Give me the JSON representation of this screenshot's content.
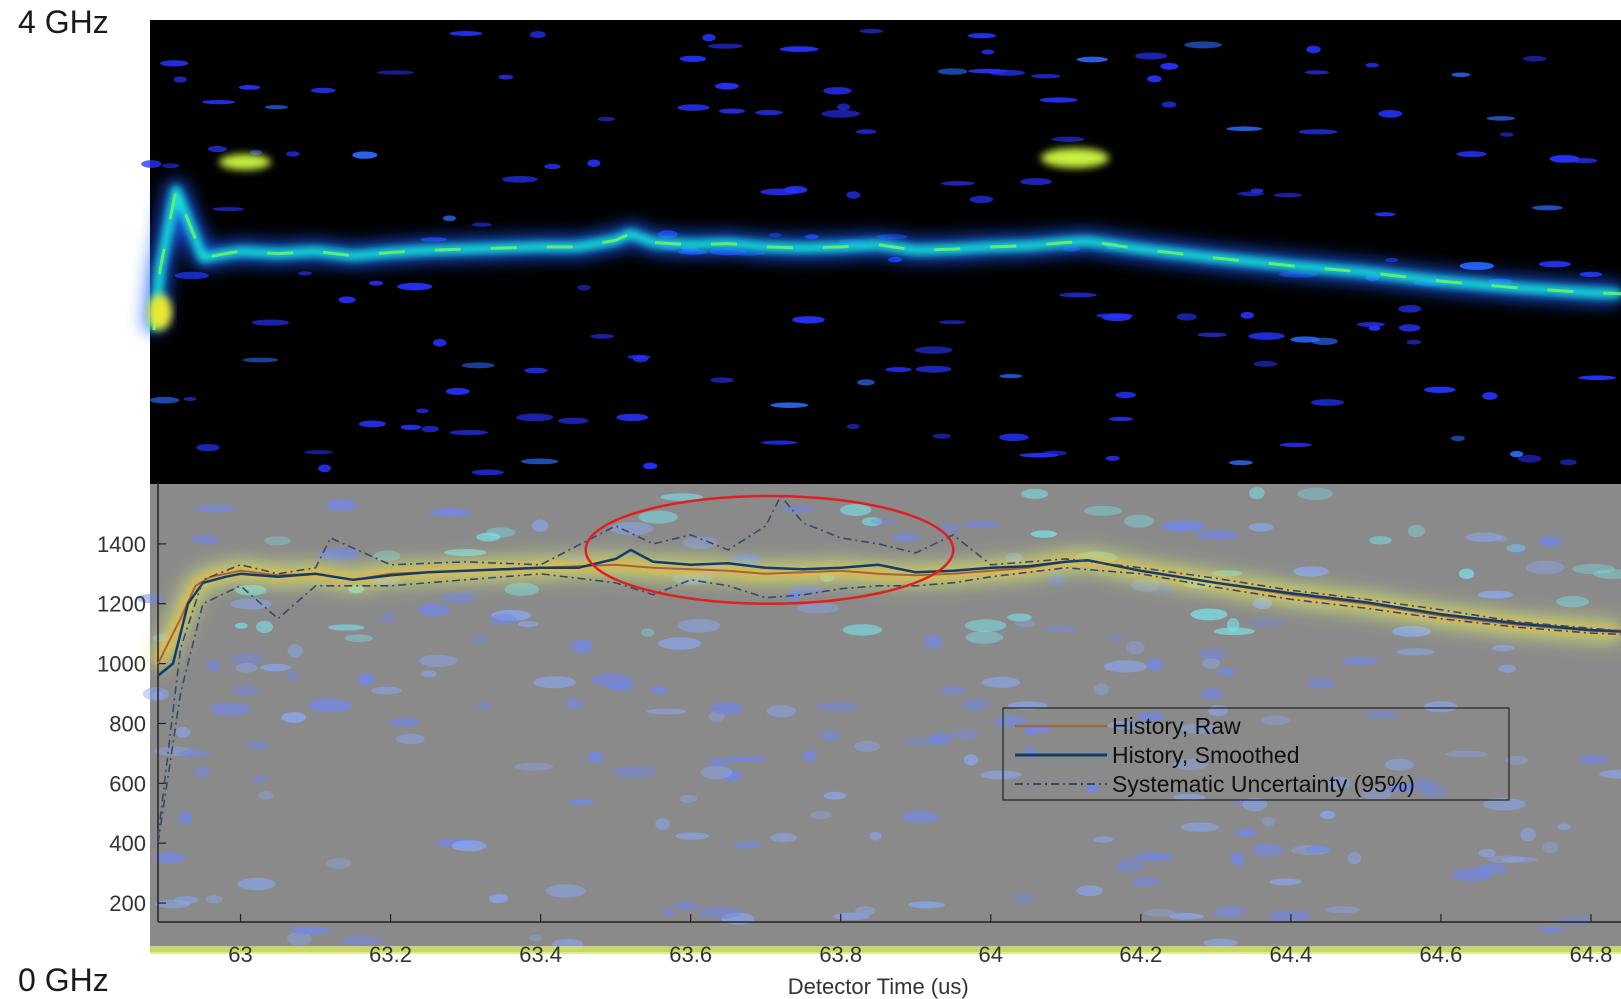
{
  "band_labels": {
    "top": "4 GHz",
    "bottom": "0 GHz"
  },
  "colors": {
    "spectrogram_bg": "#000000",
    "overlay_bg": "#8a8a8a",
    "noise_blue": "#2633ff",
    "signal_cyan": "#18e8d8",
    "signal_green": "#6cf06a",
    "raw_line": "#a06838",
    "smoothed_line": "#0f3d6e",
    "uncertainty_line": "#3a4a66",
    "highlight_ellipse": "#e02020",
    "tick_text": "#333333"
  },
  "chart_data": {
    "type": "line",
    "title": "",
    "xlabel": "Detector Time (us)",
    "ylabel": "",
    "xlim": [
      62.89,
      64.84
    ],
    "ylim": [
      150,
      1560
    ],
    "x_ticks": [
      "63",
      "63.2",
      "63.4",
      "63.6",
      "63.8",
      "64",
      "64.2",
      "64.4",
      "64.6",
      "64.8"
    ],
    "y_ticks": [
      "1400",
      "1200",
      "1000",
      "800",
      "600",
      "400",
      "200"
    ],
    "legend": {
      "position": "center-right",
      "entries": [
        "History, Raw",
        "History, Smoothed",
        "Systematic Uncertainty (95%)"
      ]
    },
    "series": [
      {
        "name": "History, Raw",
        "x": [
          62.89,
          62.92,
          62.94,
          62.96,
          63.0,
          63.05,
          63.1,
          63.15,
          63.2,
          63.25,
          63.3,
          63.35,
          63.4,
          63.45,
          63.5,
          63.55,
          63.6,
          63.65,
          63.7,
          63.75,
          63.8,
          63.85,
          63.9,
          63.95,
          64.0,
          64.05,
          64.1,
          64.13,
          64.2,
          64.3,
          64.4,
          64.5,
          64.6,
          64.7,
          64.8,
          64.84
        ],
        "values": [
          1000,
          1150,
          1260,
          1290,
          1310,
          1295,
          1300,
          1280,
          1300,
          1305,
          1310,
          1315,
          1320,
          1325,
          1330,
          1320,
          1315,
          1310,
          1300,
          1305,
          1310,
          1300,
          1295,
          1300,
          1310,
          1320,
          1340,
          1345,
          1310,
          1270,
          1230,
          1200,
          1160,
          1130,
          1110,
          1105
        ]
      },
      {
        "name": "History, Smoothed",
        "x": [
          62.89,
          62.91,
          62.93,
          62.95,
          62.98,
          63.0,
          63.05,
          63.1,
          63.15,
          63.2,
          63.25,
          63.3,
          63.35,
          63.4,
          63.45,
          63.5,
          63.52,
          63.55,
          63.6,
          63.65,
          63.7,
          63.75,
          63.8,
          63.85,
          63.9,
          63.95,
          64.0,
          64.05,
          64.1,
          64.13,
          64.2,
          64.3,
          64.4,
          64.5,
          64.6,
          64.7,
          64.8,
          64.84
        ],
        "values": [
          960,
          1000,
          1200,
          1270,
          1290,
          1300,
          1290,
          1300,
          1280,
          1295,
          1305,
          1310,
          1315,
          1320,
          1320,
          1350,
          1380,
          1340,
          1330,
          1335,
          1320,
          1315,
          1320,
          1330,
          1305,
          1310,
          1320,
          1325,
          1340,
          1345,
          1310,
          1270,
          1235,
          1205,
          1165,
          1135,
          1112,
          1108
        ]
      },
      {
        "name": "Systematic Uncertainty (95%)",
        "x": [
          62.89,
          62.92,
          62.95,
          63.0,
          63.05,
          63.1,
          63.12,
          63.2,
          63.3,
          63.4,
          63.5,
          63.55,
          63.6,
          63.65,
          63.7,
          63.72,
          63.75,
          63.8,
          63.85,
          63.9,
          63.95,
          64.0,
          64.1,
          64.2,
          64.3,
          64.4,
          64.5,
          64.6,
          64.7,
          64.8,
          64.84
        ],
        "values": [
          420,
          1050,
          1280,
          1330,
          1300,
          1320,
          1420,
          1330,
          1340,
          1330,
          1460,
          1400,
          1430,
          1380,
          1460,
          1560,
          1470,
          1420,
          1400,
          1370,
          1430,
          1330,
          1350,
          1320,
          1285,
          1245,
          1215,
          1180,
          1140,
          1118,
          1110
        ]
      },
      {
        "name": "Systematic Uncertainty (95%)",
        "x": [
          62.89,
          62.92,
          62.95,
          63.0,
          63.05,
          63.1,
          63.2,
          63.3,
          63.4,
          63.5,
          63.55,
          63.6,
          63.65,
          63.7,
          63.75,
          63.8,
          63.85,
          63.9,
          63.95,
          64.0,
          64.1,
          64.2,
          64.3,
          64.4,
          64.5,
          64.6,
          64.7,
          64.8,
          64.84
        ],
        "values": [
          400,
          900,
          1200,
          1260,
          1150,
          1260,
          1260,
          1280,
          1300,
          1270,
          1230,
          1280,
          1260,
          1220,
          1230,
          1250,
          1260,
          1260,
          1270,
          1290,
          1320,
          1300,
          1255,
          1215,
          1185,
          1150,
          1122,
          1102,
          1098
        ]
      }
    ],
    "annotations": [
      {
        "type": "ellipse",
        "x_range": [
          63.46,
          63.95
        ],
        "y_range": [
          1200,
          1560
        ]
      }
    ]
  }
}
